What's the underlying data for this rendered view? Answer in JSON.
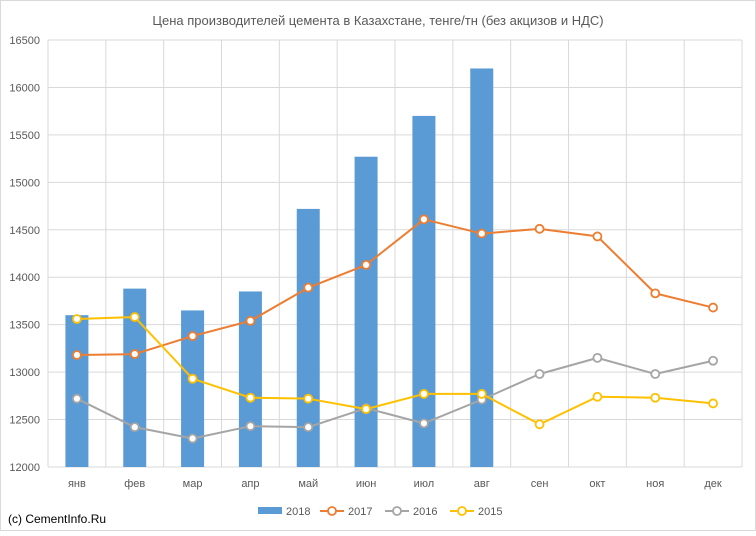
{
  "chart_data": {
    "type": "bar+line",
    "title": "Цена производителей цемента в Казахстане, тенге/тн (без акцизов и НДС)",
    "categories": [
      "янв",
      "фев",
      "мар",
      "апр",
      "май",
      "июн",
      "июл",
      "авг",
      "сен",
      "окт",
      "ноя",
      "дек"
    ],
    "ylim": [
      12000,
      16500
    ],
    "yticks": [
      12000,
      12500,
      13000,
      13500,
      14000,
      14500,
      15000,
      15500,
      16000,
      16500
    ],
    "grid": true,
    "legend_position": "bottom",
    "series": [
      {
        "name": "2018",
        "kind": "bar",
        "color": "#5B9BD5",
        "values": [
          13600,
          13880,
          13650,
          13850,
          14720,
          15270,
          15700,
          16200,
          null,
          null,
          null,
          null
        ]
      },
      {
        "name": "2017",
        "kind": "line",
        "color": "#ED7D31",
        "values": [
          13180,
          13190,
          13380,
          13540,
          13890,
          14130,
          14610,
          14460,
          14510,
          14430,
          13830,
          13680
        ]
      },
      {
        "name": "2016",
        "kind": "line",
        "color": "#A5A5A5",
        "values": [
          12720,
          12420,
          12300,
          12430,
          12420,
          12620,
          12460,
          12710,
          12980,
          13150,
          12980,
          13120
        ]
      },
      {
        "name": "2015",
        "kind": "line",
        "color": "#FFC000",
        "values": [
          13560,
          13580,
          12930,
          12730,
          12720,
          12610,
          12770,
          12770,
          12450,
          12740,
          12730,
          12670
        ]
      }
    ]
  },
  "watermark": "(c) CementInfo.Ru"
}
